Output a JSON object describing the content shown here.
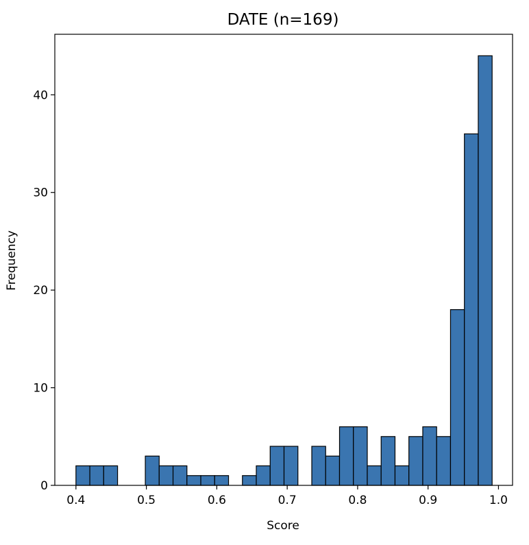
{
  "chart_data": {
    "type": "bar",
    "title": "DATE (n=169)",
    "xlabel": "Score",
    "ylabel": "Frequency",
    "xlim": [
      0.37,
      1.02
    ],
    "ylim": [
      0,
      46.2
    ],
    "x_ticks": [
      0.4,
      0.5,
      0.6,
      0.7,
      0.8,
      0.9,
      1.0
    ],
    "x_tick_labels": [
      "0.4",
      "0.5",
      "0.6",
      "0.7",
      "0.8",
      "0.9",
      "1.0"
    ],
    "y_ticks": [
      0,
      10,
      20,
      30,
      40
    ],
    "y_tick_labels": [
      "0",
      "10",
      "20",
      "30",
      "40"
    ],
    "bin_start": 0.4,
    "bin_width": 0.0197,
    "values": [
      2,
      2,
      2,
      0,
      0,
      3,
      2,
      2,
      1,
      1,
      1,
      0,
      1,
      2,
      4,
      4,
      0,
      4,
      3,
      6,
      6,
      2,
      5,
      2,
      5,
      6,
      5,
      18,
      36,
      44
    ],
    "bar_color": "#3a75b0",
    "edge_color": "#000000",
    "grid": false,
    "legend": "none"
  }
}
